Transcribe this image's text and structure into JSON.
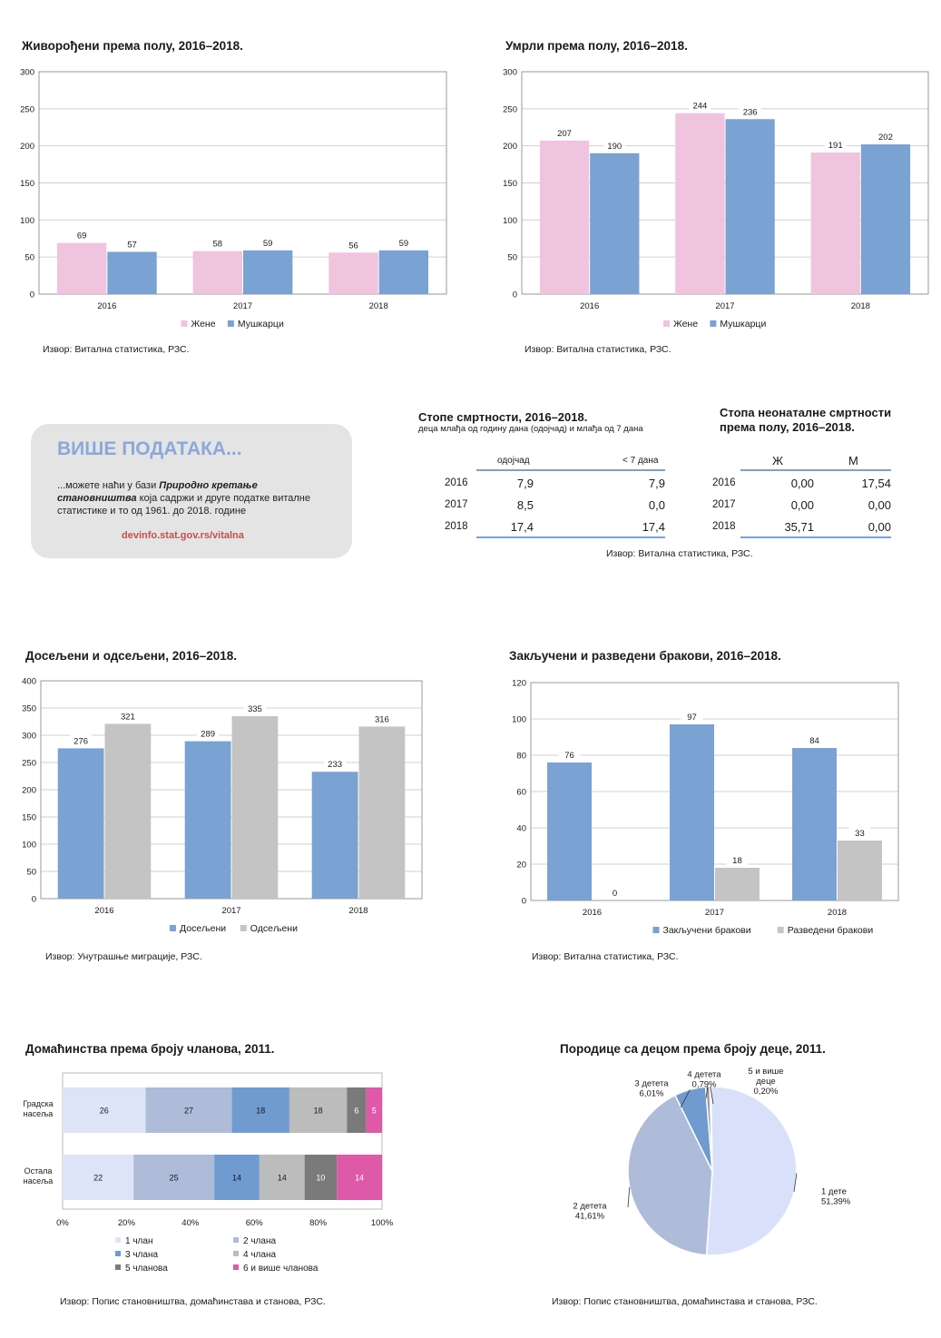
{
  "births": {
    "title": "Живорођени према полу, 2016–2018.",
    "source": "Извор: Витална статистика, РЗС.",
    "legend": [
      "Жене",
      "Мушкарци"
    ],
    "chart_data": {
      "type": "bar",
      "categories": [
        "2016",
        "2017",
        "2018"
      ],
      "series": [
        {
          "name": "Жене",
          "values": [
            69,
            58,
            56
          ],
          "color": "#f0c3de"
        },
        {
          "name": "Мушкарци",
          "values": [
            57,
            59,
            59
          ],
          "color": "#7aa2d2"
        }
      ],
      "ylim": [
        0,
        300
      ],
      "yticks": [
        0,
        50,
        100,
        150,
        200,
        250,
        300
      ]
    }
  },
  "deaths": {
    "title": "Умрли према полу, 2016–2018.",
    "source": "Извор: Витална статистика, РЗС.",
    "legend": [
      "Жене",
      "Мушкарци"
    ],
    "chart_data": {
      "type": "bar",
      "categories": [
        "2016",
        "2017",
        "2018"
      ],
      "series": [
        {
          "name": "Жене",
          "values": [
            207,
            244,
            191
          ],
          "color": "#f0c3de"
        },
        {
          "name": "Мушкарци",
          "values": [
            190,
            236,
            202
          ],
          "color": "#7aa2d2"
        }
      ],
      "ylim": [
        0,
        300
      ],
      "yticks": [
        0,
        50,
        100,
        150,
        200,
        250,
        300
      ]
    }
  },
  "more": {
    "heading": "ВИШЕ ПОДАТАКА...",
    "text1": "...можете наћи у бази ",
    "text_bold": "Природно кретање становништва",
    "text2": " која садржи и друге податке виталне статистике и то од 1961. до 2018. године",
    "link": "devinfo.stat.gov.rs/vitalna"
  },
  "mortality": {
    "title": "Стопе смртности, 2016–2018.",
    "subtitle": "деца млађа од годину дана (одојчад) и млађа од 7 дана",
    "col1": "одојчад",
    "col2": "< 7 дана",
    "rows": [
      {
        "year": "2016",
        "a": "7,9",
        "b": "7,9"
      },
      {
        "year": "2017",
        "a": "8,5",
        "b": "0,0"
      },
      {
        "year": "2018",
        "a": "17,4",
        "b": "17,4"
      }
    ]
  },
  "neonatal": {
    "title1": "Стопа неонаталне смртности",
    "title2": "према полу, 2016–2018.",
    "col1": "Ж",
    "col2": "М",
    "rows": [
      {
        "year": "2016",
        "a": "0,00",
        "b": "17,54"
      },
      {
        "year": "2017",
        "a": "0,00",
        "b": "0,00"
      },
      {
        "year": "2018",
        "a": "35,71",
        "b": "0,00"
      }
    ]
  },
  "rates_source": "Извор: Витална статистика, РЗС.",
  "migration": {
    "title": "Досељени и одсељени, 2016–2018.",
    "source": "Извор: Унутрашње миграције, РЗС.",
    "legend": [
      "Досељени",
      "Одсељени"
    ],
    "chart_data": {
      "type": "bar",
      "categories": [
        "2016",
        "2017",
        "2018"
      ],
      "series": [
        {
          "name": "Досељени",
          "values": [
            276,
            289,
            233
          ],
          "color": "#7aa2d2"
        },
        {
          "name": "Одсељени",
          "values": [
            321,
            335,
            316
          ],
          "color": "#c4c4c4"
        }
      ],
      "ylim": [
        0,
        400
      ],
      "yticks": [
        0,
        50,
        100,
        150,
        200,
        250,
        300,
        350,
        400
      ]
    }
  },
  "marriages": {
    "title": "Закључени и разведени бракови, 2016–2018.",
    "source": "Извор: Витална статистика, РЗС.",
    "legend": [
      "Закључени бракови",
      "Разведени бракови"
    ],
    "chart_data": {
      "type": "bar",
      "categories": [
        "2016",
        "2017",
        "2018"
      ],
      "series": [
        {
          "name": "Закључени бракови",
          "values": [
            76,
            97,
            84
          ],
          "color": "#7aa2d2"
        },
        {
          "name": "Разведени бракови",
          "values": [
            0,
            18,
            33
          ],
          "color": "#c4c4c4"
        }
      ],
      "ylim": [
        0,
        120
      ],
      "yticks": [
        0,
        20,
        40,
        60,
        80,
        100,
        120
      ]
    }
  },
  "households": {
    "title": "Домаћинства према броју чланова, 2011.",
    "source": "Извор: Попис становништва, домаћинстава и станова, РЗС.",
    "chart_data": {
      "type": "bar",
      "orientation": "horizontal-stacked-100",
      "categories": [
        "Градска насеља",
        "Остала насеља"
      ],
      "category_lines": [
        [
          "Градска",
          "насеља"
        ],
        [
          "Остала",
          "насеља"
        ]
      ],
      "series": [
        {
          "name": "1 члан",
          "values": [
            26,
            22
          ],
          "color": "#dde4f8"
        },
        {
          "name": "2 члана",
          "values": [
            27,
            25
          ],
          "color": "#aebbd9"
        },
        {
          "name": "3 члана",
          "values": [
            18,
            14
          ],
          "color": "#6f9bd0"
        },
        {
          "name": "4 члана",
          "values": [
            18,
            14
          ],
          "color": "#bcbcbc"
        },
        {
          "name": "5 чланова",
          "values": [
            6,
            10
          ],
          "color": "#7a7a7a"
        },
        {
          "name": "6 и више чланова",
          "values": [
            5,
            14
          ],
          "color": "#de5aa8"
        }
      ],
      "xticks": [
        "0%",
        "20%",
        "40%",
        "60%",
        "80%",
        "100%"
      ]
    }
  },
  "families": {
    "title": "Породице са децом према броју деце, 2011.",
    "source": "Извор: Попис становништва, домаћинстава и станова, РЗС.",
    "chart_data": {
      "type": "pie",
      "slices": [
        {
          "lines": [
            "1 дете",
            "51,39%"
          ],
          "value": 51.39,
          "color": "#d9e1fa"
        },
        {
          "lines": [
            "2 детета",
            "41,61%"
          ],
          "value": 41.61,
          "color": "#aebbd9"
        },
        {
          "lines": [
            "3 детета",
            "6,01%"
          ],
          "value": 6.01,
          "color": "#6f9bd0"
        },
        {
          "lines": [
            "4 детета",
            "0,79%"
          ],
          "value": 0.79,
          "color": "#9a9a9a"
        },
        {
          "lines": [
            "5 и више",
            "деце",
            "0,20%"
          ],
          "value": 0.2,
          "color": "#d7d7d7"
        }
      ]
    }
  }
}
